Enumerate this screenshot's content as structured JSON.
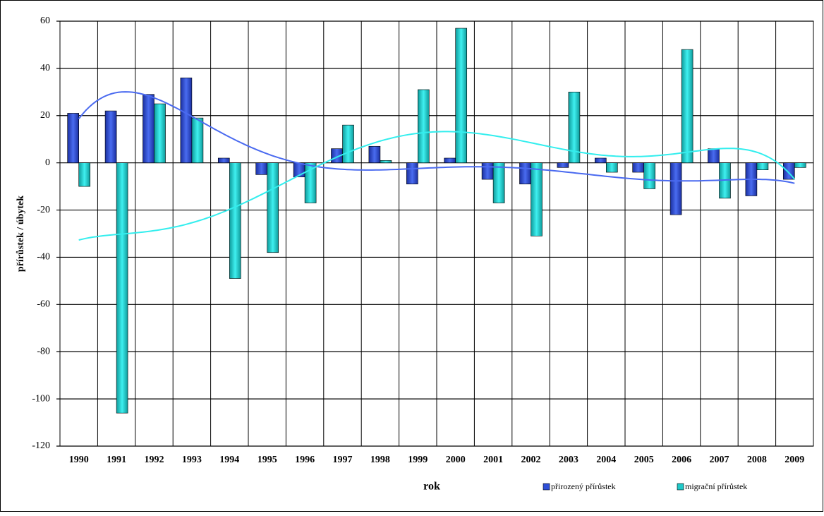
{
  "chart_data": {
    "type": "bar",
    "x_label": "rok",
    "y_label": "přírůstek / úbytek",
    "categories": [
      "1990",
      "1991",
      "1992",
      "1993",
      "1994",
      "1995",
      "1996",
      "1997",
      "1998",
      "1999",
      "2000",
      "2001",
      "2002",
      "2003",
      "2004",
      "2005",
      "2006",
      "2007",
      "2008",
      "2009"
    ],
    "series": [
      {
        "name": "přirozený přírůstek",
        "color": "#2f4fd8",
        "values": [
          21,
          22,
          29,
          36,
          2,
          -5,
          -6,
          6,
          7,
          -9,
          2,
          -7,
          -9,
          -2,
          2,
          -4,
          -22,
          6,
          -14,
          -7
        ]
      },
      {
        "name": "migrační přírůstek",
        "color": "#1fc9c9",
        "values": [
          -10,
          -106,
          25,
          19,
          -49,
          -38,
          -17,
          16,
          1,
          31,
          57,
          -17,
          -31,
          30,
          -4,
          -11,
          48,
          -15,
          -3,
          -2
        ]
      }
    ],
    "ylim": [
      -120,
      60
    ],
    "yticks": [
      -120,
      -100,
      -80,
      -60,
      -40,
      -20,
      0,
      20,
      40,
      60
    ],
    "grid": true
  }
}
